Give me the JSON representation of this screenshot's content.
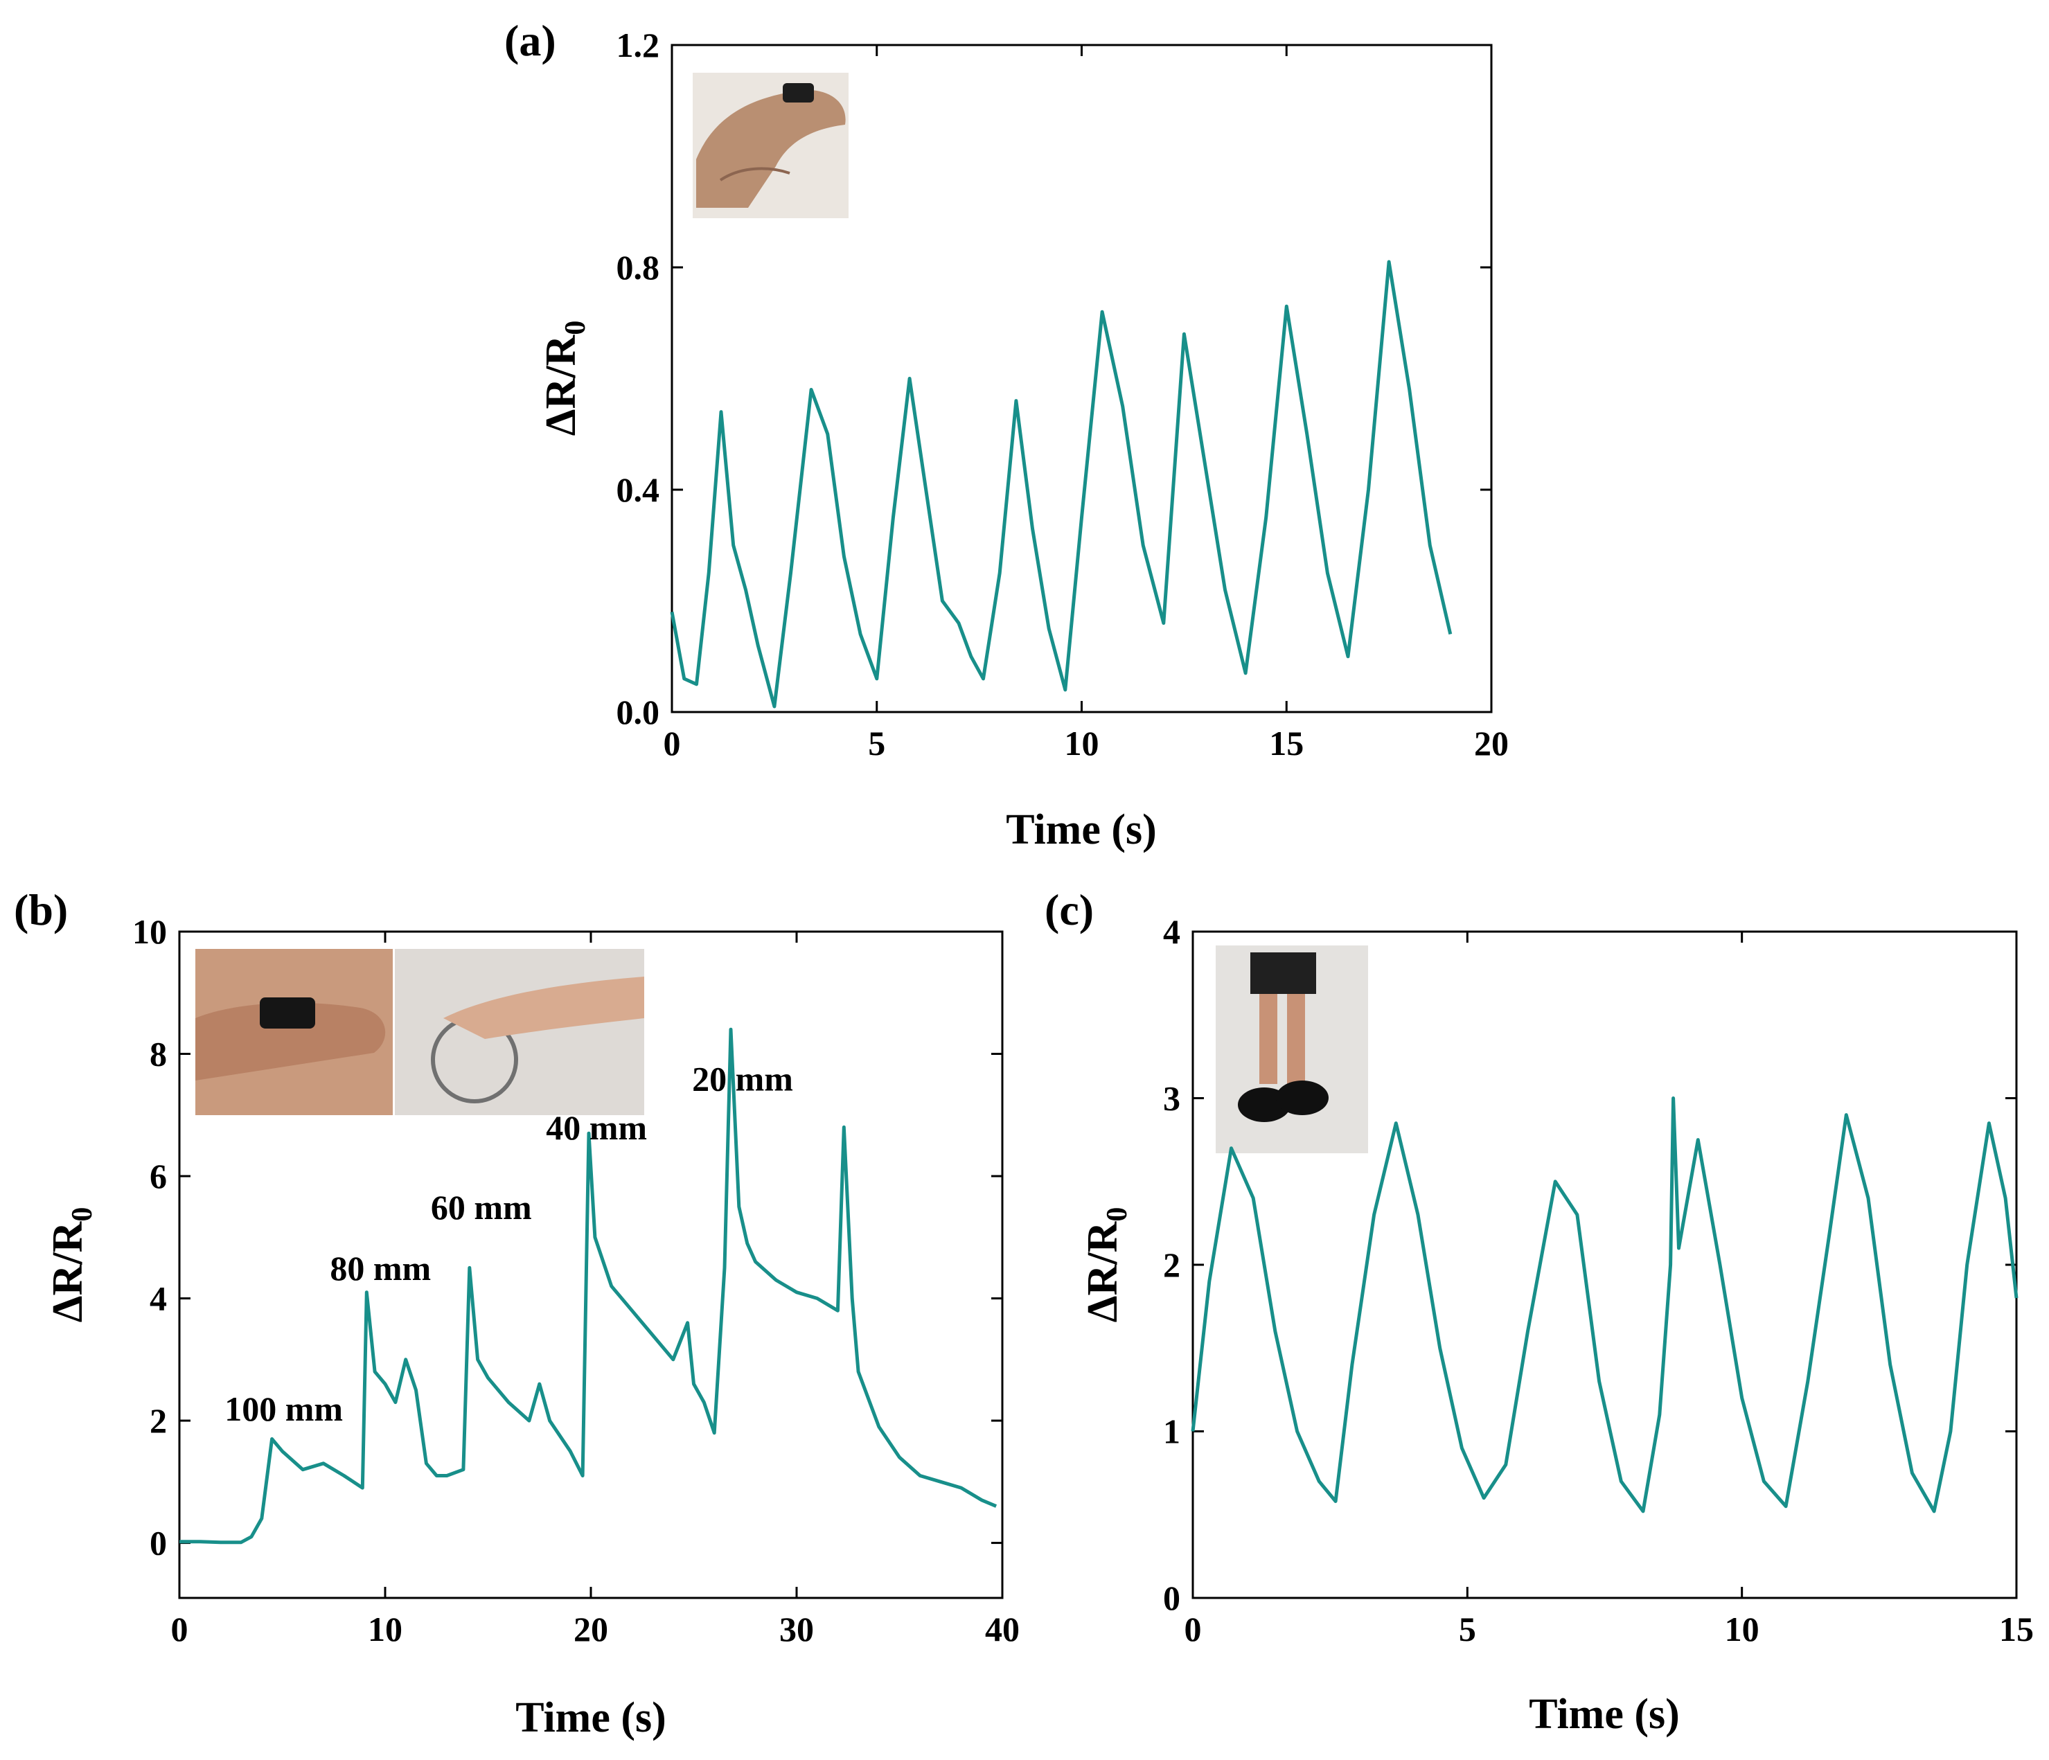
{
  "colors": {
    "line": "#188f8a",
    "axis": "#000000",
    "inset_bg": "#e6e1da"
  },
  "chart_data": [
    {
      "id": "a",
      "panel_label": "(a)",
      "type": "line",
      "xlabel": "Time (s)",
      "ylabel": "ΔR/R",
      "ylabel_sub": "0",
      "xlim": [
        0,
        20
      ],
      "ylim": [
        0,
        1.2
      ],
      "xticks": [
        0,
        5,
        10,
        15,
        20
      ],
      "xtick_labels": [
        "0",
        "5",
        "10",
        "15",
        "20"
      ],
      "yticks": [
        0,
        0.4,
        0.8,
        1.2
      ],
      "ytick_labels": [
        "0.0",
        "0.4",
        "0.8",
        "1.2"
      ],
      "inset_image": "finger-bend-photo",
      "series": [
        {
          "name": "finger bending",
          "x": [
            0,
            0.3,
            0.6,
            0.9,
            1.2,
            1.5,
            1.8,
            2.1,
            2.5,
            2.9,
            3.4,
            3.8,
            4.2,
            4.6,
            5.0,
            5.4,
            5.8,
            6.2,
            6.6,
            7.0,
            7.3,
            7.6,
            8.0,
            8.4,
            8.8,
            9.2,
            9.6,
            10.0,
            10.5,
            11.0,
            11.5,
            12.0,
            12.5,
            13.0,
            13.5,
            14.0,
            14.5,
            15.0,
            15.5,
            16.0,
            16.5,
            17.0,
            17.5,
            18.0,
            18.5,
            19.0
          ],
          "y": [
            0.18,
            0.06,
            0.05,
            0.25,
            0.54,
            0.3,
            0.22,
            0.12,
            0.01,
            0.25,
            0.58,
            0.5,
            0.28,
            0.14,
            0.06,
            0.35,
            0.6,
            0.4,
            0.2,
            0.16,
            0.1,
            0.06,
            0.25,
            0.56,
            0.33,
            0.15,
            0.04,
            0.35,
            0.72,
            0.55,
            0.3,
            0.16,
            0.68,
            0.45,
            0.22,
            0.07,
            0.35,
            0.73,
            0.5,
            0.25,
            0.1,
            0.4,
            0.81,
            0.58,
            0.3,
            0.14
          ]
        }
      ],
      "annotations": []
    },
    {
      "id": "b",
      "panel_label": "(b)",
      "type": "line",
      "xlabel": "Time (s)",
      "ylabel": "ΔR/R",
      "ylabel_sub": "0",
      "xlim": [
        0,
        40
      ],
      "ylim": [
        -0.9,
        10
      ],
      "xticks": [
        0,
        10,
        20,
        30,
        40
      ],
      "xtick_labels": [
        "0",
        "10",
        "20",
        "30",
        "40"
      ],
      "yticks": [
        0,
        2,
        4,
        6,
        8,
        10
      ],
      "ytick_labels": [
        "0",
        "2",
        "4",
        "6",
        "8",
        "10"
      ],
      "inset_image": "finger-ring-and-hand-photos",
      "series": [
        {
          "name": "bending radius",
          "x": [
            0,
            1,
            2,
            3,
            3.5,
            4,
            4.5,
            5,
            6,
            7,
            8,
            8.9,
            9.1,
            9.5,
            10,
            10.5,
            11,
            11.5,
            12,
            12.5,
            13,
            13.8,
            14.1,
            14.5,
            15,
            16,
            17,
            17.5,
            18,
            19,
            19.6,
            19.9,
            20.2,
            20.6,
            21,
            22,
            23,
            24,
            24.7,
            25,
            25.5,
            26,
            26.5,
            26.8,
            27.2,
            27.6,
            28,
            29,
            30,
            31,
            32,
            32.3,
            32.7,
            33,
            34,
            35,
            36,
            37,
            38,
            39,
            39.7
          ],
          "y": [
            0.02,
            0.02,
            0.01,
            0.01,
            0.1,
            0.4,
            1.7,
            1.5,
            1.2,
            1.3,
            1.1,
            0.9,
            4.1,
            2.8,
            2.6,
            2.3,
            3.0,
            2.5,
            1.3,
            1.1,
            1.1,
            1.2,
            4.5,
            3.0,
            2.7,
            2.3,
            2.0,
            2.6,
            2.0,
            1.5,
            1.1,
            6.7,
            5.0,
            4.6,
            4.2,
            3.8,
            3.4,
            3.0,
            3.6,
            2.6,
            2.3,
            1.8,
            4.5,
            8.4,
            5.5,
            4.9,
            4.6,
            4.3,
            4.1,
            4.0,
            3.8,
            6.8,
            4.0,
            2.8,
            1.9,
            1.4,
            1.1,
            1.0,
            0.9,
            0.7,
            0.6
          ]
        }
      ],
      "annotations": [
        {
          "text": "100 mm",
          "x": 4.4,
          "y": 2.0
        },
        {
          "text": "80 mm",
          "x": 9.1,
          "y": 4.3
        },
        {
          "text": "60 mm",
          "x": 14.0,
          "y": 5.3
        },
        {
          "text": "40 mm",
          "x": 19.6,
          "y": 6.6
        },
        {
          "text": "20 mm",
          "x": 26.7,
          "y": 7.4
        }
      ]
    },
    {
      "id": "c",
      "panel_label": "(c)",
      "type": "line",
      "xlabel": "Time (s)",
      "ylabel": "ΔR/R",
      "ylabel_sub": "0",
      "xlim": [
        0,
        15
      ],
      "ylim": [
        0,
        4
      ],
      "xticks": [
        0,
        5,
        10,
        15
      ],
      "xtick_labels": [
        "0",
        "5",
        "10",
        "15"
      ],
      "yticks": [
        0,
        1,
        2,
        3,
        4
      ],
      "ytick_labels": [
        "0",
        "1",
        "2",
        "3",
        "4"
      ],
      "inset_image": "knee-bend-photo",
      "series": [
        {
          "name": "knee bending",
          "x": [
            0,
            0.3,
            0.7,
            1.1,
            1.5,
            1.9,
            2.3,
            2.6,
            2.9,
            3.3,
            3.7,
            4.1,
            4.5,
            4.9,
            5.3,
            5.7,
            6.1,
            6.6,
            7.0,
            7.4,
            7.8,
            8.2,
            8.5,
            8.7,
            8.75,
            8.85,
            9.2,
            9.6,
            10.0,
            10.4,
            10.8,
            11.2,
            11.6,
            11.9,
            12.3,
            12.7,
            13.1,
            13.5,
            13.8,
            14.1,
            14.5,
            14.8,
            15.0
          ],
          "y": [
            1.0,
            1.9,
            2.7,
            2.4,
            1.6,
            1.0,
            0.7,
            0.58,
            1.4,
            2.3,
            2.85,
            2.3,
            1.5,
            0.9,
            0.6,
            0.8,
            1.6,
            2.5,
            2.3,
            1.3,
            0.7,
            0.52,
            1.1,
            2.0,
            3.0,
            2.1,
            2.75,
            2.0,
            1.2,
            0.7,
            0.55,
            1.3,
            2.2,
            2.9,
            2.4,
            1.4,
            0.75,
            0.52,
            1.0,
            2.0,
            2.85,
            2.4,
            1.8
          ]
        }
      ],
      "annotations": []
    }
  ]
}
